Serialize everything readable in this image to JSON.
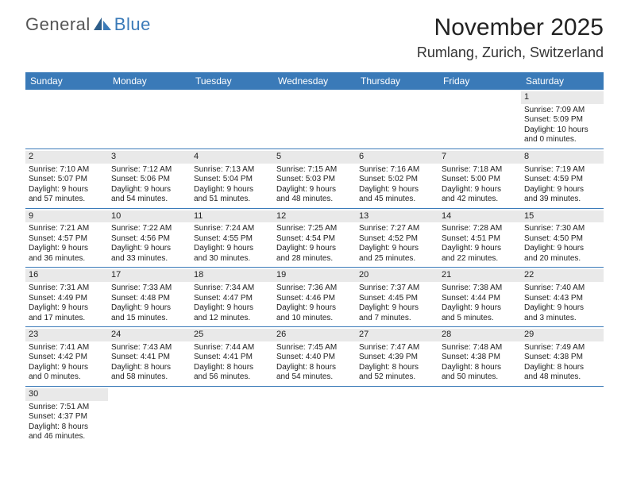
{
  "brand": {
    "part1": "General",
    "part2": "Blue"
  },
  "title": "November 2025",
  "location": "Rumlang, Zurich, Switzerland",
  "colors": {
    "header_bg": "#3a7ab8",
    "header_text": "#ffffff",
    "daynum_bg": "#e9e9e9",
    "row_border": "#3a7ab8",
    "text": "#222222",
    "logo_gray": "#555555",
    "logo_blue": "#3a7ab8"
  },
  "day_headers": [
    "Sunday",
    "Monday",
    "Tuesday",
    "Wednesday",
    "Thursday",
    "Friday",
    "Saturday"
  ],
  "weeks": [
    [
      null,
      null,
      null,
      null,
      null,
      null,
      {
        "n": "1",
        "sr": "7:09 AM",
        "ss": "5:09 PM",
        "dl": "10 hours and 0 minutes."
      }
    ],
    [
      {
        "n": "2",
        "sr": "7:10 AM",
        "ss": "5:07 PM",
        "dl": "9 hours and 57 minutes."
      },
      {
        "n": "3",
        "sr": "7:12 AM",
        "ss": "5:06 PM",
        "dl": "9 hours and 54 minutes."
      },
      {
        "n": "4",
        "sr": "7:13 AM",
        "ss": "5:04 PM",
        "dl": "9 hours and 51 minutes."
      },
      {
        "n": "5",
        "sr": "7:15 AM",
        "ss": "5:03 PM",
        "dl": "9 hours and 48 minutes."
      },
      {
        "n": "6",
        "sr": "7:16 AM",
        "ss": "5:02 PM",
        "dl": "9 hours and 45 minutes."
      },
      {
        "n": "7",
        "sr": "7:18 AM",
        "ss": "5:00 PM",
        "dl": "9 hours and 42 minutes."
      },
      {
        "n": "8",
        "sr": "7:19 AM",
        "ss": "4:59 PM",
        "dl": "9 hours and 39 minutes."
      }
    ],
    [
      {
        "n": "9",
        "sr": "7:21 AM",
        "ss": "4:57 PM",
        "dl": "9 hours and 36 minutes."
      },
      {
        "n": "10",
        "sr": "7:22 AM",
        "ss": "4:56 PM",
        "dl": "9 hours and 33 minutes."
      },
      {
        "n": "11",
        "sr": "7:24 AM",
        "ss": "4:55 PM",
        "dl": "9 hours and 30 minutes."
      },
      {
        "n": "12",
        "sr": "7:25 AM",
        "ss": "4:54 PM",
        "dl": "9 hours and 28 minutes."
      },
      {
        "n": "13",
        "sr": "7:27 AM",
        "ss": "4:52 PM",
        "dl": "9 hours and 25 minutes."
      },
      {
        "n": "14",
        "sr": "7:28 AM",
        "ss": "4:51 PM",
        "dl": "9 hours and 22 minutes."
      },
      {
        "n": "15",
        "sr": "7:30 AM",
        "ss": "4:50 PM",
        "dl": "9 hours and 20 minutes."
      }
    ],
    [
      {
        "n": "16",
        "sr": "7:31 AM",
        "ss": "4:49 PM",
        "dl": "9 hours and 17 minutes."
      },
      {
        "n": "17",
        "sr": "7:33 AM",
        "ss": "4:48 PM",
        "dl": "9 hours and 15 minutes."
      },
      {
        "n": "18",
        "sr": "7:34 AM",
        "ss": "4:47 PM",
        "dl": "9 hours and 12 minutes."
      },
      {
        "n": "19",
        "sr": "7:36 AM",
        "ss": "4:46 PM",
        "dl": "9 hours and 10 minutes."
      },
      {
        "n": "20",
        "sr": "7:37 AM",
        "ss": "4:45 PM",
        "dl": "9 hours and 7 minutes."
      },
      {
        "n": "21",
        "sr": "7:38 AM",
        "ss": "4:44 PM",
        "dl": "9 hours and 5 minutes."
      },
      {
        "n": "22",
        "sr": "7:40 AM",
        "ss": "4:43 PM",
        "dl": "9 hours and 3 minutes."
      }
    ],
    [
      {
        "n": "23",
        "sr": "7:41 AM",
        "ss": "4:42 PM",
        "dl": "9 hours and 0 minutes."
      },
      {
        "n": "24",
        "sr": "7:43 AM",
        "ss": "4:41 PM",
        "dl": "8 hours and 58 minutes."
      },
      {
        "n": "25",
        "sr": "7:44 AM",
        "ss": "4:41 PM",
        "dl": "8 hours and 56 minutes."
      },
      {
        "n": "26",
        "sr": "7:45 AM",
        "ss": "4:40 PM",
        "dl": "8 hours and 54 minutes."
      },
      {
        "n": "27",
        "sr": "7:47 AM",
        "ss": "4:39 PM",
        "dl": "8 hours and 52 minutes."
      },
      {
        "n": "28",
        "sr": "7:48 AM",
        "ss": "4:38 PM",
        "dl": "8 hours and 50 minutes."
      },
      {
        "n": "29",
        "sr": "7:49 AM",
        "ss": "4:38 PM",
        "dl": "8 hours and 48 minutes."
      }
    ],
    [
      {
        "n": "30",
        "sr": "7:51 AM",
        "ss": "4:37 PM",
        "dl": "8 hours and 46 minutes."
      },
      null,
      null,
      null,
      null,
      null,
      null
    ]
  ],
  "labels": {
    "sunrise": "Sunrise: ",
    "sunset": "Sunset: ",
    "daylight": "Daylight: "
  }
}
